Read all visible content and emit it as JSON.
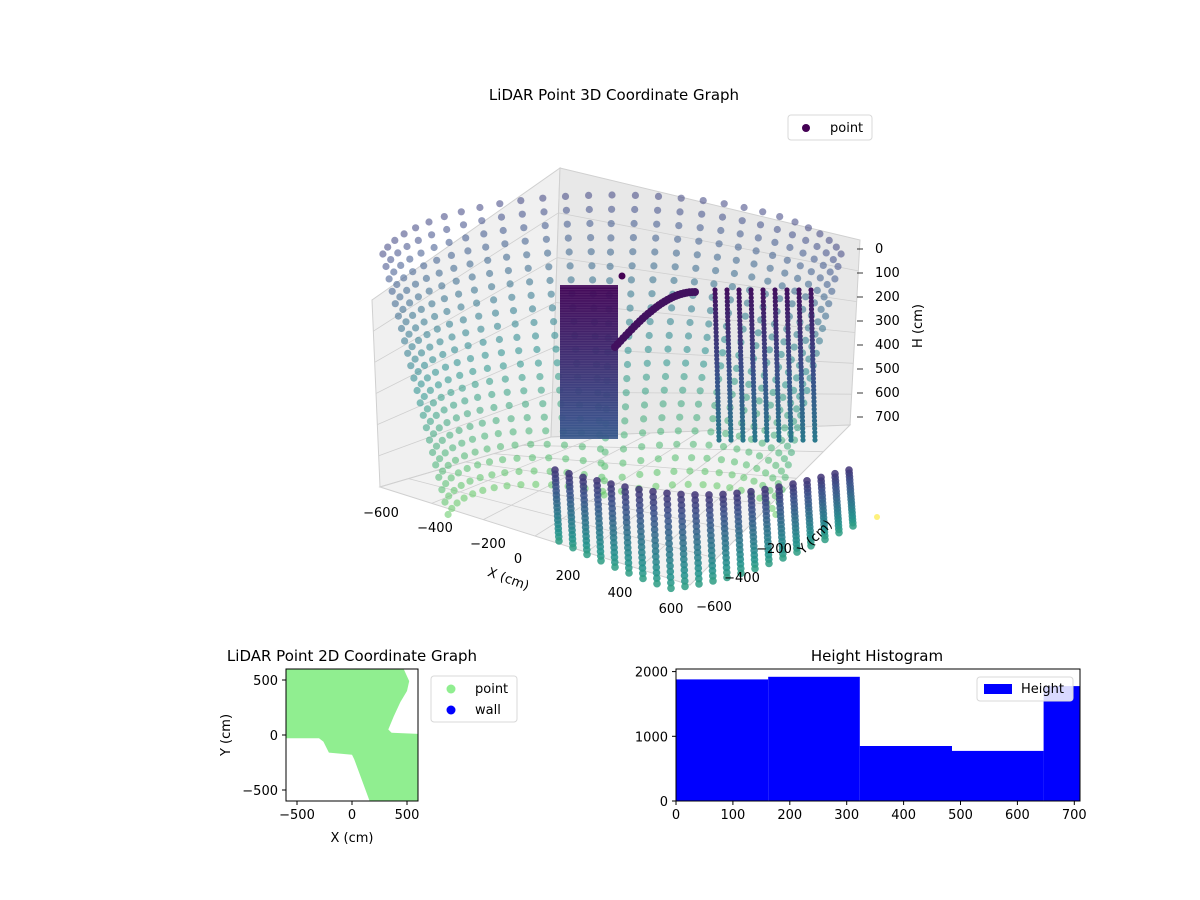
{
  "chart_data": [
    {
      "type": "scatter",
      "title": "LiDAR Point 3D Coordinate Graph",
      "projection": "3d",
      "series": [
        {
          "name": "point"
        }
      ],
      "xlabel": "X (cm)",
      "ylabel": "Y (cm)",
      "zlabel": "H (cm)",
      "xticks": [
        -600,
        -400,
        -200,
        0,
        200,
        400,
        600
      ],
      "yticks": [
        -600,
        -400,
        -200
      ],
      "zticks": [
        0,
        100,
        200,
        300,
        400,
        500,
        600,
        700
      ],
      "xlim": [
        -600,
        600
      ],
      "ylim": [
        -600,
        600
      ],
      "zlim": [
        0,
        700
      ],
      "colormap": "viridis",
      "legend_position": "top-right"
    },
    {
      "type": "scatter",
      "title": "LiDAR Point 2D Coordinate Graph",
      "xlabel": "X (cm)",
      "ylabel": "Y (cm)",
      "xticks": [
        -500,
        0,
        500
      ],
      "yticks": [
        -500,
        0,
        500
      ],
      "xlim": [
        -600,
        600
      ],
      "ylim": [
        -600,
        600
      ],
      "series": [
        {
          "name": "point",
          "color": "#90ee90",
          "region": [
            [
              -600,
              600
            ],
            [
              470,
              600
            ],
            [
              520,
              490
            ],
            [
              500,
              400
            ],
            [
              440,
              300
            ],
            [
              380,
              170
            ],
            [
              330,
              50
            ],
            [
              360,
              20
            ],
            [
              600,
              10
            ],
            [
              600,
              -600
            ],
            [
              160,
              -600
            ],
            [
              20,
              -220
            ],
            [
              0,
              -180
            ],
            [
              -210,
              -160
            ],
            [
              -260,
              -60
            ],
            [
              -300,
              -30
            ],
            [
              -600,
              -30
            ]
          ]
        },
        {
          "name": "wall",
          "color": "#0000ff",
          "region": []
        }
      ],
      "legend_position": "outside-right"
    },
    {
      "type": "bar",
      "title": "Height Histogram",
      "series": [
        {
          "name": "Height",
          "color": "#0000ff"
        }
      ],
      "bins": [
        [
          0,
          162,
          1880
        ],
        [
          162,
          323,
          1920
        ],
        [
          323,
          485,
          850
        ],
        [
          485,
          646,
          775
        ],
        [
          646,
          710,
          1775
        ]
      ],
      "xticks": [
        0,
        100,
        200,
        300,
        400,
        500,
        600,
        700
      ],
      "yticks": [
        0,
        1000,
        2000
      ],
      "xlim": [
        0,
        710
      ],
      "ylim": [
        0,
        2040
      ],
      "legend_position": "top-right"
    }
  ]
}
